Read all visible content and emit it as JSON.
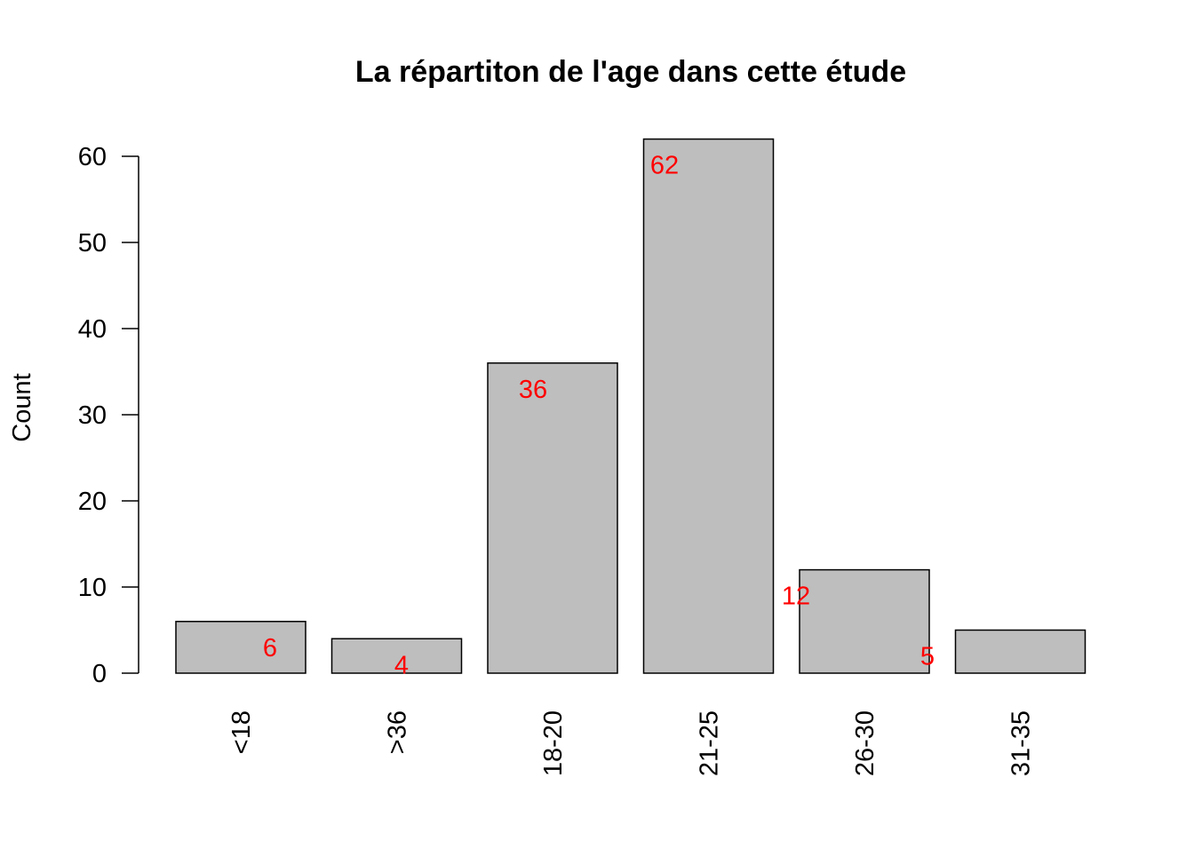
{
  "chart_data": {
    "type": "bar",
    "title": "La répartiton de l'age dans cette étude",
    "xlabel": "",
    "ylabel": "Count",
    "categories": [
      "<18",
      ">36",
      "18-20",
      "21-25",
      "26-30",
      "31-35"
    ],
    "values": [
      6,
      4,
      36,
      62,
      12,
      5
    ],
    "ylim": [
      0,
      60
    ],
    "yticks": [
      0,
      10,
      20,
      30,
      40,
      50,
      60
    ],
    "data_labels": [
      "6",
      "4",
      "36",
      "62",
      "12",
      "5"
    ],
    "x_tick_rotation": "vertical",
    "grid": false,
    "legend": "none",
    "colors": {
      "bar_fill": "#bebebe",
      "bar_stroke": "#000000",
      "data_label": "#ff0000",
      "text": "#000000"
    }
  }
}
